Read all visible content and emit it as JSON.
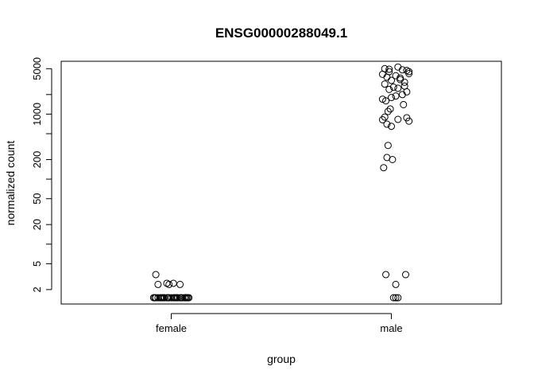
{
  "chart_data": {
    "type": "scatter",
    "title": "ENSG00000288049.1",
    "xlabel": "group",
    "ylabel": "normalized count",
    "categories": [
      "female",
      "male"
    ],
    "y_scale": "log",
    "ylim": [
      1.2,
      6500
    ],
    "yticks": [
      {
        "value": 2,
        "label": "2"
      },
      {
        "value": 5,
        "label": "5"
      },
      {
        "value": 10,
        "label": ""
      },
      {
        "value": 20,
        "label": "20"
      },
      {
        "value": 50,
        "label": "50"
      },
      {
        "value": 100,
        "label": ""
      },
      {
        "value": 200,
        "label": "200"
      },
      {
        "value": 500,
        "label": ""
      },
      {
        "value": 1000,
        "label": "1000"
      },
      {
        "value": 2000,
        "label": ""
      },
      {
        "value": 5000,
        "label": "5000"
      }
    ],
    "grid": false,
    "series": [
      {
        "category": "female",
        "points": [
          {
            "x": 0.93,
            "y": 3.4
          },
          {
            "x": 0.94,
            "y": 2.4
          },
          {
            "x": 0.98,
            "y": 2.5
          },
          {
            "x": 1.01,
            "y": 2.5
          },
          {
            "x": 1.04,
            "y": 2.4
          },
          {
            "x": 0.99,
            "y": 2.4
          },
          {
            "x": 0.92,
            "y": 1.5
          },
          {
            "x": 0.93,
            "y": 1.5
          },
          {
            "x": 0.94,
            "y": 1.5
          },
          {
            "x": 0.95,
            "y": 1.5
          },
          {
            "x": 0.96,
            "y": 1.5
          },
          {
            "x": 0.97,
            "y": 1.5
          },
          {
            "x": 0.98,
            "y": 1.5
          },
          {
            "x": 0.99,
            "y": 1.5
          },
          {
            "x": 1.0,
            "y": 1.5
          },
          {
            "x": 1.01,
            "y": 1.5
          },
          {
            "x": 1.02,
            "y": 1.5
          },
          {
            "x": 1.03,
            "y": 1.5
          },
          {
            "x": 1.04,
            "y": 1.5
          },
          {
            "x": 1.05,
            "y": 1.5
          },
          {
            "x": 1.06,
            "y": 1.5
          },
          {
            "x": 1.07,
            "y": 1.5
          },
          {
            "x": 1.08,
            "y": 1.5
          },
          {
            "x": 0.925,
            "y": 1.5
          },
          {
            "x": 0.955,
            "y": 1.5
          },
          {
            "x": 0.985,
            "y": 1.5
          },
          {
            "x": 1.015,
            "y": 1.5
          },
          {
            "x": 1.045,
            "y": 1.5
          },
          {
            "x": 1.075,
            "y": 1.5
          },
          {
            "x": 1.065,
            "y": 1.5
          },
          {
            "x": 0.965,
            "y": 1.5
          },
          {
            "x": 1.025,
            "y": 1.5
          }
        ]
      },
      {
        "category": "male",
        "points": [
          {
            "x": 1.97,
            "y": 5000
          },
          {
            "x": 2.03,
            "y": 5300
          },
          {
            "x": 2.07,
            "y": 4700
          },
          {
            "x": 1.99,
            "y": 4500
          },
          {
            "x": 1.96,
            "y": 4100
          },
          {
            "x": 2.02,
            "y": 3900
          },
          {
            "x": 2.08,
            "y": 4200
          },
          {
            "x": 1.98,
            "y": 3700
          },
          {
            "x": 2.04,
            "y": 3600
          },
          {
            "x": 2.06,
            "y": 3100
          },
          {
            "x": 2.0,
            "y": 3300
          },
          {
            "x": 1.97,
            "y": 2900
          },
          {
            "x": 2.01,
            "y": 2600
          },
          {
            "x": 2.03,
            "y": 2500
          },
          {
            "x": 2.07,
            "y": 2200
          },
          {
            "x": 1.99,
            "y": 2400
          },
          {
            "x": 2.05,
            "y": 2000
          },
          {
            "x": 2.02,
            "y": 1900
          },
          {
            "x": 2.0,
            "y": 1800
          },
          {
            "x": 1.96,
            "y": 1700
          },
          {
            "x": 1.975,
            "y": 1600
          },
          {
            "x": 2.055,
            "y": 1400
          },
          {
            "x": 1.995,
            "y": 1200
          },
          {
            "x": 1.985,
            "y": 1100
          },
          {
            "x": 1.97,
            "y": 900
          },
          {
            "x": 2.07,
            "y": 880
          },
          {
            "x": 1.96,
            "y": 820
          },
          {
            "x": 2.03,
            "y": 830
          },
          {
            "x": 2.08,
            "y": 780
          },
          {
            "x": 1.98,
            "y": 700
          },
          {
            "x": 2.0,
            "y": 650
          },
          {
            "x": 1.985,
            "y": 330
          },
          {
            "x": 1.98,
            "y": 215
          },
          {
            "x": 2.005,
            "y": 200
          },
          {
            "x": 1.965,
            "y": 150
          },
          {
            "x": 1.975,
            "y": 3.4
          },
          {
            "x": 2.065,
            "y": 3.4
          },
          {
            "x": 2.02,
            "y": 2.4
          },
          {
            "x": 2.01,
            "y": 1.5
          },
          {
            "x": 2.03,
            "y": 1.5
          },
          {
            "x": 2.02,
            "y": 1.5
          },
          {
            "x": 2.05,
            "y": 4800
          },
          {
            "x": 2.08,
            "y": 4500
          },
          {
            "x": 1.99,
            "y": 4900
          },
          {
            "x": 2.04,
            "y": 3400
          },
          {
            "x": 2.06,
            "y": 2700
          }
        ]
      }
    ]
  }
}
